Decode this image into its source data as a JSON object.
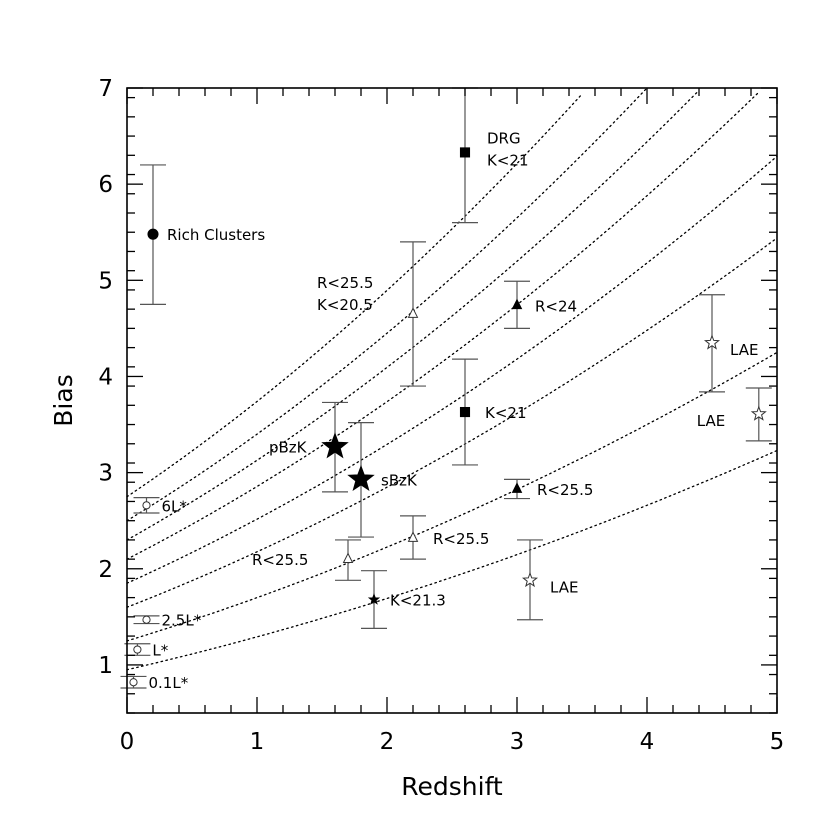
{
  "chart_data": {
    "type": "scatter",
    "xlabel": "Redshift",
    "ylabel": "Bias",
    "xlim": [
      0,
      5
    ],
    "ylim": [
      0.5,
      7
    ],
    "xticks": [
      "0",
      "1",
      "2",
      "3",
      "4",
      "5"
    ],
    "yticks": [
      "1",
      "2",
      "3",
      "4",
      "5",
      "6",
      "7"
    ],
    "grid": false,
    "legend": "none",
    "curves_b0": [
      0.95,
      1.25,
      1.6,
      1.85,
      2.1,
      2.3,
      2.5,
      2.75
    ],
    "points": [
      {
        "label": "Rich Clusters",
        "x": 0.2,
        "y": 5.48,
        "yerr_lo": 4.75,
        "yerr_hi": 6.2,
        "marker": "filled-circle",
        "size": "medium"
      },
      {
        "label": "6L*",
        "x": 0.15,
        "y": 2.66,
        "yerr_lo": 2.58,
        "yerr_hi": 2.74,
        "marker": "open-circle",
        "size": "small"
      },
      {
        "label": "2.5L*",
        "x": 0.15,
        "y": 1.47,
        "yerr_lo": 1.43,
        "yerr_hi": 1.51,
        "marker": "open-circle",
        "size": "small"
      },
      {
        "label": "L*",
        "x": 0.08,
        "y": 1.16,
        "yerr_lo": 1.1,
        "yerr_hi": 1.22,
        "marker": "open-circle",
        "size": "small"
      },
      {
        "label": "0.1L*",
        "x": 0.05,
        "y": 0.82,
        "yerr_lo": 0.76,
        "yerr_hi": 0.88,
        "marker": "open-circle",
        "size": "small"
      },
      {
        "label": "DRG\nK<21",
        "x": 2.6,
        "y": 6.33,
        "yerr_lo": 5.6,
        "yerr_hi": 7.0,
        "marker": "filled-square",
        "size": "medium"
      },
      {
        "label": "R<25.5\nK<20.5",
        "x": 2.2,
        "y": 4.65,
        "yerr_lo": 3.9,
        "yerr_hi": 5.4,
        "marker": "open-triangle",
        "size": "medium"
      },
      {
        "label": "R<24",
        "x": 3.0,
        "y": 4.74,
        "yerr_lo": 4.5,
        "yerr_hi": 4.99,
        "marker": "filled-triangle",
        "size": "medium"
      },
      {
        "label": "K<21",
        "x": 2.6,
        "y": 3.63,
        "yerr_lo": 3.08,
        "yerr_hi": 4.18,
        "marker": "filled-square",
        "size": "medium"
      },
      {
        "label": "pBzK",
        "x": 1.6,
        "y": 3.27,
        "yerr_lo": 2.8,
        "yerr_hi": 3.73,
        "marker": "filled-star",
        "size": "large"
      },
      {
        "label": "sBzK",
        "x": 1.8,
        "y": 2.93,
        "yerr_lo": 2.33,
        "yerr_hi": 3.52,
        "marker": "filled-star",
        "size": "large"
      },
      {
        "label": "R<25.5",
        "x": 3.0,
        "y": 2.83,
        "yerr_lo": 2.73,
        "yerr_hi": 2.93,
        "marker": "filled-triangle",
        "size": "medium"
      },
      {
        "label": "R<25.5",
        "x": 2.2,
        "y": 2.32,
        "yerr_lo": 2.1,
        "yerr_hi": 2.55,
        "marker": "open-triangle",
        "size": "medium"
      },
      {
        "label": "R<25.5",
        "x": 1.7,
        "y": 2.1,
        "yerr_lo": 1.88,
        "yerr_hi": 2.3,
        "marker": "open-triangle",
        "size": "medium"
      },
      {
        "label": "K<21.3",
        "x": 1.9,
        "y": 1.68,
        "yerr_lo": 1.38,
        "yerr_hi": 1.98,
        "marker": "filled-star",
        "size": "small"
      },
      {
        "label": "LAE",
        "x": 3.1,
        "y": 1.88,
        "yerr_lo": 1.47,
        "yerr_hi": 2.3,
        "marker": "open-star",
        "size": "medium"
      },
      {
        "label": "LAE",
        "x": 4.5,
        "y": 4.35,
        "yerr_lo": 3.84,
        "yerr_hi": 4.85,
        "marker": "open-star",
        "size": "medium"
      },
      {
        "label": "LAE",
        "x": 4.86,
        "y": 3.61,
        "yerr_lo": 3.33,
        "yerr_hi": 3.88,
        "marker": "open-star",
        "size": "medium"
      }
    ]
  }
}
